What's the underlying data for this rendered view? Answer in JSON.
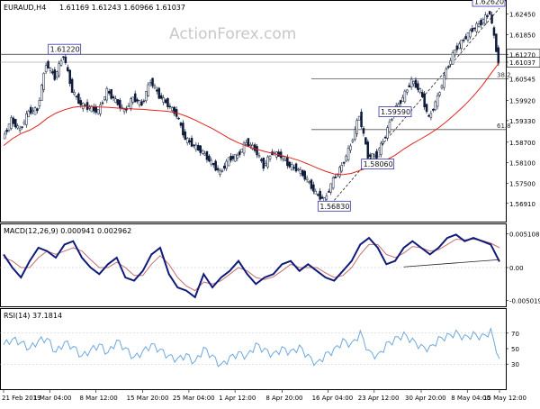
{
  "header": {
    "symbol_tf": "EURAUD,H4",
    "ohlc": "1.61169 1.61243 1.60966 1.61037",
    "watermark": "ActionForex.com"
  },
  "colors": {
    "bg": "#ffffff",
    "axis": "#000000",
    "candle_up": "#2a3f8f",
    "candle_down": "#0d1a3a",
    "ma": "#e0251b",
    "macd": "#0f1a7a",
    "signal": "#c66f6f",
    "rsi": "#6fa8dc",
    "levels": "#555555",
    "label_border": "#3333aa",
    "watermark": "#c8c8c8"
  },
  "chart_data": [
    {
      "type": "candlestick",
      "title": "EURAUD,H4",
      "ylim": [
        1.5643,
        1.627
      ],
      "yticks": [
        1.6245,
        1.6185,
        1.6127,
        1.6104,
        1.6055,
        1.5992,
        1.5933,
        1.587,
        1.581,
        1.575,
        1.5691
      ],
      "ytick_labels": [
        "1.62450",
        "1.61850",
        "1.61270",
        "1.61037",
        "1.60545",
        "1.59920",
        "1.59330",
        "1.58700",
        "1.58100",
        "1.57500",
        "1.56910"
      ],
      "current_price": "1.61037",
      "prev_level": "1.61270",
      "close": [
        1.588,
        1.5935,
        1.5905,
        1.596,
        1.5965,
        1.61,
        1.606,
        1.6125,
        1.602,
        1.598,
        1.597,
        1.596,
        1.602,
        1.599,
        1.596,
        1.6,
        1.598,
        1.605,
        1.6005,
        1.598,
        1.595,
        1.588,
        1.586,
        1.584,
        1.581,
        1.578,
        1.582,
        1.583,
        1.587,
        1.585,
        1.58,
        1.584,
        1.583,
        1.58,
        1.579,
        1.576,
        1.572,
        1.57,
        1.576,
        1.58,
        1.586,
        1.595,
        1.583,
        1.583,
        1.589,
        1.596,
        1.6,
        1.605,
        1.602,
        1.594,
        1.6,
        1.608,
        1.614,
        1.617,
        1.62,
        1.622,
        1.625,
        1.6104
      ],
      "moving_average": [
        1.586,
        1.588,
        1.5895,
        1.5905,
        1.592,
        1.594,
        1.5955,
        1.5965,
        1.5972,
        1.5975,
        1.5975,
        1.5973,
        1.5972,
        1.597,
        1.5968,
        1.5967,
        1.5966,
        1.5964,
        1.5962,
        1.596,
        1.5955,
        1.5946,
        1.5935,
        1.5922,
        1.591,
        1.5895,
        1.588,
        1.5868,
        1.5858,
        1.585,
        1.5843,
        1.5837,
        1.5831,
        1.5824,
        1.5816,
        1.5806,
        1.5795,
        1.5785,
        1.5777,
        1.5775,
        1.5779,
        1.5788,
        1.5796,
        1.5806,
        1.5818,
        1.5832,
        1.585,
        1.5866,
        1.588,
        1.5895,
        1.5912,
        1.5932,
        1.5955,
        1.5978,
        1.6005,
        1.6035,
        1.607,
        1.6104
      ],
      "levels": [
        {
          "label": "38.2",
          "value": 1.6055
        },
        {
          "label": "61.8",
          "value": 1.5907
        }
      ],
      "annotations": [
        {
          "text": "1.62620",
          "x": 56,
          "y": 1.6262
        },
        {
          "text": "1.61220",
          "x": 7,
          "y": 1.6122
        },
        {
          "text": "1.59590",
          "x": 45,
          "y": 1.5959
        },
        {
          "text": "1.58060",
          "x": 43,
          "y": 1.5806
        },
        {
          "text": "1.56830",
          "x": 38,
          "y": 1.5683
        }
      ]
    },
    {
      "type": "line",
      "title": "MACD(12,26,9) 0.000941 0.002962",
      "ylim": [
        -0.0056,
        0.0056
      ],
      "ytick_labels": [
        "0.005108",
        "0.00",
        "-0.005019"
      ],
      "yticks": [
        0.005108,
        0.0,
        -0.005019
      ],
      "series": [
        {
          "name": "macd",
          "values": [
            0.002,
            0.0,
            -0.0015,
            0.001,
            0.003,
            0.0025,
            0.0015,
            0.0035,
            0.004,
            0.0015,
            0.0,
            -0.001,
            0.0005,
            0.0015,
            -0.0015,
            -0.002,
            -0.0005,
            0.002,
            0.003,
            -0.001,
            -0.003,
            -0.0035,
            -0.0045,
            -0.001,
            -0.003,
            -0.0015,
            -0.0005,
            0.001,
            -0.001,
            -0.0025,
            -0.0015,
            -0.001,
            0.0005,
            0.001,
            -0.0005,
            0.0005,
            -0.0005,
            -0.0015,
            -0.002,
            -0.0005,
            0.001,
            0.0035,
            0.0045,
            0.003,
            0.0005,
            0.001,
            0.003,
            0.004,
            0.003,
            0.002,
            0.003,
            0.0045,
            0.005,
            0.004,
            0.0045,
            0.004,
            0.0035,
            0.0009
          ]
        },
        {
          "name": "signal",
          "values": [
            0.0015,
            0.001,
            0.0,
            0.0,
            0.0015,
            0.0025,
            0.002,
            0.0025,
            0.003,
            0.0025,
            0.0012,
            0.0,
            0.0,
            0.0008,
            0.0,
            -0.0012,
            -0.0012,
            0.0005,
            0.0018,
            0.0005,
            -0.0015,
            -0.0028,
            -0.0035,
            -0.0022,
            -0.0025,
            -0.002,
            -0.001,
            0.0,
            -0.0005,
            -0.0015,
            -0.0018,
            -0.0014,
            -0.0005,
            0.0005,
            0.0,
            0.0,
            0.0,
            -0.0008,
            -0.0015,
            -0.0012,
            0.0,
            0.002,
            0.0035,
            0.0035,
            0.002,
            0.0015,
            0.0022,
            0.0032,
            0.003,
            0.0025,
            0.0027,
            0.0035,
            0.0043,
            0.0042,
            0.0043,
            0.0041,
            0.0037,
            0.003
          ]
        }
      ],
      "trendline": [
        {
          "x": 46,
          "y": 0.0001
        },
        {
          "x": 57,
          "y": 0.0012
        }
      ]
    },
    {
      "type": "line",
      "title": "RSI(14) 37.1814",
      "ylim": [
        0,
        100
      ],
      "yticks": [
        70,
        50,
        30
      ],
      "ytick_labels": [
        "70",
        "50",
        "30"
      ],
      "series": [
        {
          "name": "rsi",
          "values": [
            55,
            62,
            58,
            50,
            60,
            63,
            45,
            58,
            52,
            40,
            48,
            55,
            44,
            60,
            50,
            38,
            46,
            55,
            48,
            40,
            36,
            42,
            32,
            50,
            40,
            28,
            38,
            44,
            40,
            55,
            48,
            42,
            50,
            45,
            52,
            40,
            30,
            42,
            48,
            60,
            55,
            70,
            45,
            40,
            55,
            62,
            68,
            60,
            52,
            50,
            62,
            66,
            70,
            64,
            68,
            65,
            72,
            37
          ]
        }
      ]
    }
  ],
  "x_axis": {
    "labels": [
      "21 Feb 2019",
      "1 Mar 04:00",
      "8 Mar 12:00",
      "15 Mar 20:00",
      "25 Mar 04:00",
      "1 Apr 12:00",
      "8 Apr 20:00",
      "16 Apr 04:00",
      "23 Apr 12:00",
      "30 Apr 20:00",
      "8 May 04:00",
      "15 May 12:00"
    ],
    "positions": [
      0,
      5.3,
      10.6,
      16,
      21.3,
      26.6,
      32,
      37.3,
      42.6,
      48,
      53.3,
      57
    ]
  }
}
